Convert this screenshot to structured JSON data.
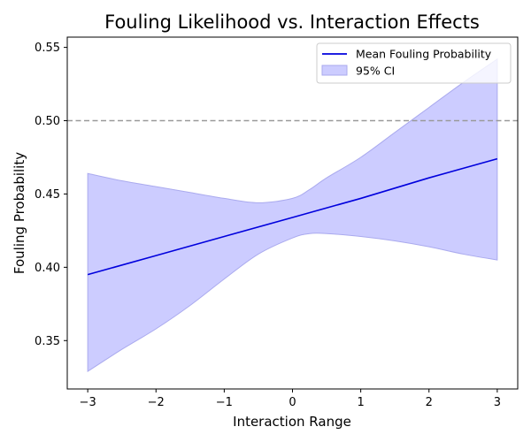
{
  "chart_data": {
    "type": "line",
    "title": "Fouling Likelihood vs. Interaction Effects",
    "xlabel": "Interaction Range",
    "ylabel": "Fouling Probability",
    "xlim": [
      -3.3,
      3.3
    ],
    "ylim": [
      0.317,
      0.557
    ],
    "xticks": [
      -3,
      -2,
      -1,
      0,
      1,
      2,
      3
    ],
    "xtick_labels": [
      "−3",
      "−2",
      "−1",
      "0",
      "1",
      "2",
      "3"
    ],
    "yticks": [
      0.35,
      0.4,
      0.45,
      0.5,
      0.55
    ],
    "ytick_labels": [
      "0.35",
      "0.40",
      "0.45",
      "0.50",
      "0.55"
    ],
    "grid": false,
    "legend_position": "top-right",
    "reference_line": {
      "y": 0.5,
      "style": "dashed",
      "color": "#999999"
    },
    "series": [
      {
        "name": "Mean Fouling Probability",
        "kind": "line",
        "color": "#0000dd",
        "x": [
          -3,
          -2,
          -1,
          0,
          1,
          2,
          3
        ],
        "y": [
          0.395,
          0.408,
          0.421,
          0.434,
          0.447,
          0.461,
          0.474
        ]
      },
      {
        "name": "95% CI",
        "kind": "band",
        "color": "#ccccff",
        "edge_color": "#aaaaee",
        "x": [
          -3,
          -2.5,
          -2,
          -1.5,
          -1,
          -0.5,
          0,
          0.25,
          0.5,
          1,
          1.5,
          2,
          2.5,
          3
        ],
        "upper": [
          0.464,
          0.459,
          0.455,
          0.451,
          0.447,
          0.444,
          0.447,
          0.453,
          0.461,
          0.475,
          0.492,
          0.509,
          0.526,
          0.542
        ],
        "lower": [
          0.329,
          0.344,
          0.358,
          0.374,
          0.392,
          0.409,
          0.42,
          0.423,
          0.423,
          0.421,
          0.418,
          0.414,
          0.409,
          0.405
        ]
      }
    ]
  }
}
